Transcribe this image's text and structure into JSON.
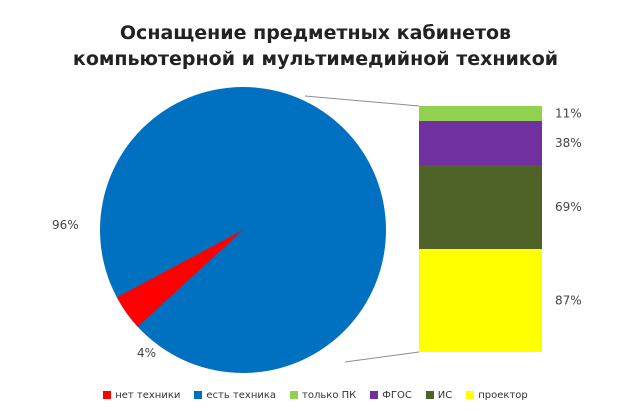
{
  "chart_data": {
    "type": "bar-of-pie",
    "title_line1": "Оснащение предметных кабинетов",
    "title_line2": "компьютерной и мультимедийной техникой",
    "pie": {
      "slices": [
        {
          "name": "нет техники",
          "value": 4,
          "label": "4%",
          "color": "#ff0000"
        },
        {
          "name": "есть техника",
          "value": 96,
          "label": "96%",
          "color": "#0070c0"
        }
      ]
    },
    "bar": {
      "segments": [
        {
          "name": "только ПК",
          "label": "11%",
          "color": "#92d050"
        },
        {
          "name": "ФГОС",
          "label": "38%",
          "color": "#7030a0"
        },
        {
          "name": "ИС",
          "label": "69%",
          "color": "#4f6228"
        },
        {
          "name": "проектор",
          "label": "87%",
          "color": "#ffff00"
        }
      ]
    }
  }
}
